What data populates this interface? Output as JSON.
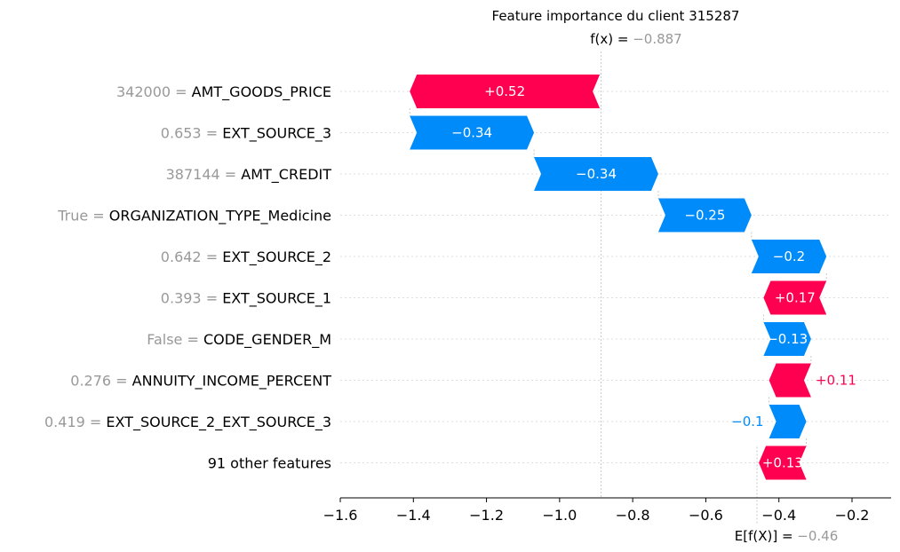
{
  "chart_data": {
    "type": "waterfall",
    "title": "Feature importance du client 315287",
    "fx_label": "f(x) = ",
    "fx_value": "−0.887",
    "base_label": "E[f(X)] = ",
    "base_value_text": "−0.46",
    "base_value": -0.46,
    "final_value": -0.887,
    "xlim": [
      -1.6,
      -0.1
    ],
    "xticks": [
      -1.6,
      -1.4,
      -1.2,
      -1.0,
      -0.8,
      -0.6,
      -0.4,
      -0.2
    ],
    "xtick_labels": [
      "−1.6",
      "−1.4",
      "−1.2",
      "−1.0",
      "−0.8",
      "−0.6",
      "−0.4",
      "−0.2"
    ],
    "features": [
      {
        "value_text": "342000",
        "name": "AMT_GOODS_PRICE",
        "start": -0.89,
        "end": -1.41,
        "contribution": 0.52,
        "label": "+0.52"
      },
      {
        "value_text": "0.653",
        "name": "EXT_SOURCE_3",
        "start": -1.41,
        "end": -1.07,
        "contribution": -0.34,
        "label": "−0.34"
      },
      {
        "value_text": "387144",
        "name": "AMT_CREDIT",
        "start": -1.07,
        "end": -0.73,
        "contribution": -0.34,
        "label": "−0.34"
      },
      {
        "value_text": "True",
        "name": "ORGANIZATION_TYPE_Medicine",
        "start": -0.73,
        "end": -0.475,
        "contribution": -0.25,
        "label": "−0.25"
      },
      {
        "value_text": "0.642",
        "name": "EXT_SOURCE_2",
        "start": -0.475,
        "end": -0.27,
        "contribution": -0.2,
        "label": "−0.2"
      },
      {
        "value_text": "0.393",
        "name": "EXT_SOURCE_1",
        "start": -0.27,
        "end": -0.442,
        "contribution": 0.17,
        "label": "+0.17"
      },
      {
        "value_text": "False",
        "name": "CODE_GENDER_M",
        "start": -0.442,
        "end": -0.312,
        "contribution": -0.13,
        "label": "−0.13"
      },
      {
        "value_text": "0.276",
        "name": "ANNUITY_INCOME_PERCENT",
        "start": -0.312,
        "end": -0.427,
        "contribution": 0.11,
        "label": "+0.11"
      },
      {
        "value_text": "0.419",
        "name": "EXT_SOURCE_2_EXT_SOURCE_3",
        "start": -0.427,
        "end": -0.325,
        "contribution": -0.1,
        "label": "−0.1"
      },
      {
        "value_text": "",
        "name": "91 other features",
        "start": -0.325,
        "end": -0.455,
        "contribution": 0.13,
        "label": "+0.13"
      }
    ],
    "colors": {
      "positive": "#ff0051",
      "negative": "#008bfb",
      "grid": "#dddddd",
      "base_line": "#bbbbbb"
    }
  }
}
